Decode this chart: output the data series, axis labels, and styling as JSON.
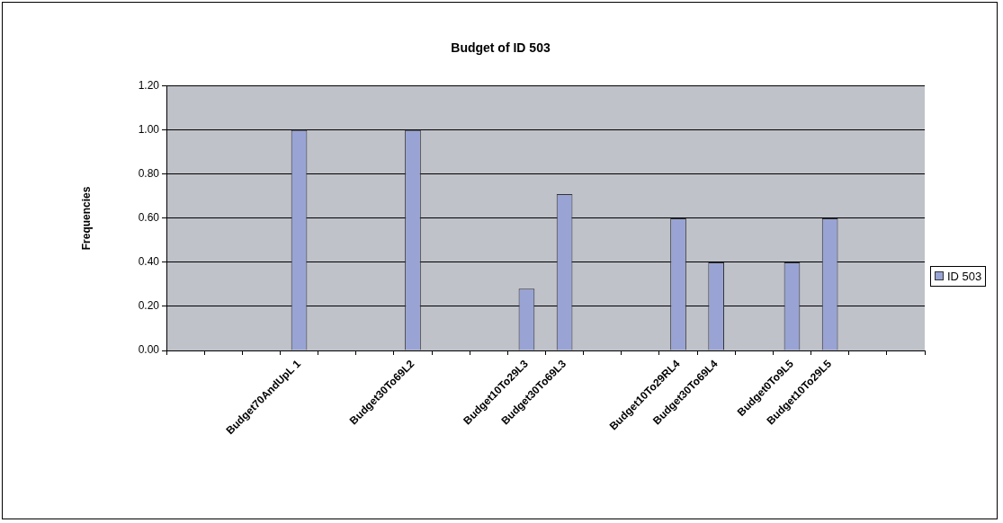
{
  "chart_data": {
    "type": "bar",
    "title": "Budget of ID 503",
    "ylabel": "Frequencies",
    "categories": [
      null,
      null,
      null,
      "Budget70AndUpL 1",
      null,
      null,
      "Budget30To69L2",
      null,
      null,
      "Budget10To29L3",
      "Budget30To69L3",
      null,
      null,
      "Budget10To29RL4",
      "Budget30To69L4",
      null,
      "Budget0To9L5",
      "Budget10To29L5",
      null,
      null
    ],
    "series": [
      {
        "name": "ID 503",
        "color": "#99a4d4",
        "values": [
          null,
          null,
          null,
          1.0,
          null,
          null,
          1.0,
          null,
          null,
          0.28,
          0.71,
          null,
          null,
          0.6,
          0.4,
          null,
          0.4,
          0.6,
          null,
          null
        ]
      }
    ],
    "ylim": [
      0,
      1.2
    ],
    "yticks": [
      {
        "value": 0,
        "label": "0.00"
      },
      {
        "value": 0.2,
        "label": "0.20"
      },
      {
        "value": 0.4,
        "label": "0.40"
      },
      {
        "value": 0.6,
        "label": "0.60"
      },
      {
        "value": 0.8,
        "label": "0.80"
      },
      {
        "value": 1.0,
        "label": "1.00"
      },
      {
        "value": 1.2,
        "label": "1.20"
      }
    ],
    "grid": "y",
    "legend": "right"
  }
}
